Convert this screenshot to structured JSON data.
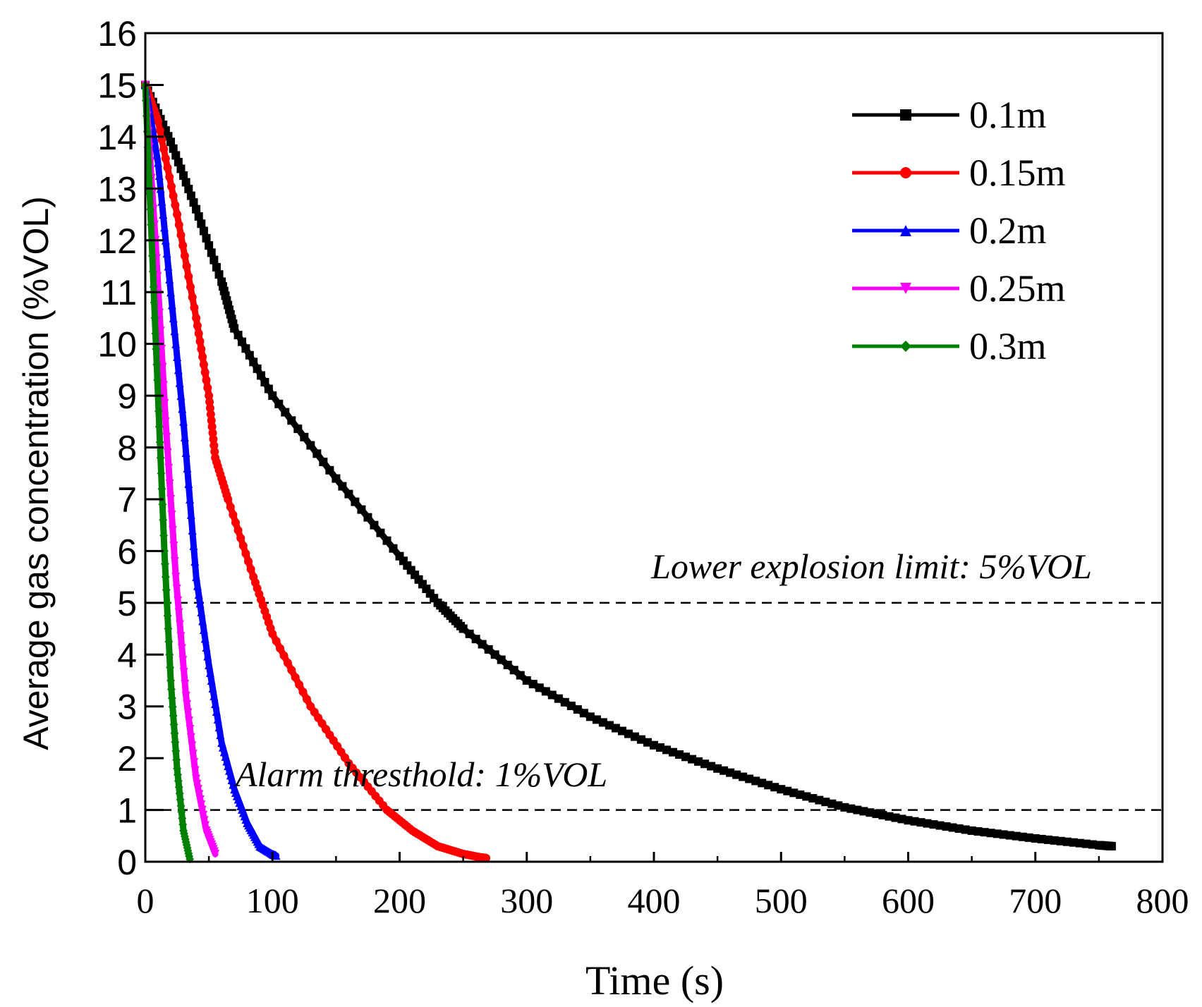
{
  "chart_data": {
    "type": "line",
    "title": "",
    "xlabel": "Time (s)",
    "ylabel": "Average gas concentration (%VOL)",
    "xlim": [
      0,
      800
    ],
    "ylim": [
      0,
      16
    ],
    "xticks": [
      0,
      100,
      200,
      300,
      400,
      500,
      600,
      700,
      800
    ],
    "yticks": [
      0,
      1,
      2,
      3,
      4,
      5,
      6,
      7,
      8,
      9,
      10,
      11,
      12,
      13,
      14,
      15,
      16
    ],
    "legend_position": "top-right",
    "series": [
      {
        "name": "0.1m",
        "color": "#000000",
        "marker": "square",
        "x": [
          0,
          20,
          40,
          60,
          70,
          100,
          150,
          200,
          230,
          250,
          300,
          350,
          400,
          450,
          500,
          550,
          600,
          650,
          700,
          750,
          760
        ],
        "y": [
          15.0,
          13.9,
          12.6,
          11.2,
          10.3,
          9.0,
          7.4,
          5.9,
          5.0,
          4.5,
          3.5,
          2.8,
          2.25,
          1.8,
          1.4,
          1.05,
          0.8,
          0.6,
          0.45,
          0.32,
          0.3
        ]
      },
      {
        "name": "0.15m",
        "color": "#ff0000",
        "marker": "circle",
        "x": [
          0,
          10,
          25,
          40,
          50,
          55,
          65,
          85,
          100,
          130,
          160,
          190,
          210,
          230,
          250,
          265,
          268
        ],
        "y": [
          15.0,
          14.3,
          12.5,
          10.5,
          9.0,
          7.8,
          7.0,
          5.5,
          4.4,
          3.0,
          1.9,
          1.0,
          0.6,
          0.3,
          0.15,
          0.08,
          0.07
        ]
      },
      {
        "name": "0.2m",
        "color": "#0000ff",
        "marker": "triangle-up",
        "x": [
          0,
          10,
          20,
          30,
          40,
          50,
          60,
          70,
          80,
          90,
          100,
          103
        ],
        "y": [
          15.0,
          13.5,
          11.0,
          8.5,
          5.5,
          3.8,
          2.3,
          1.4,
          0.75,
          0.3,
          0.15,
          0.12
        ]
      },
      {
        "name": "0.25m",
        "color": "#ff00ff",
        "marker": "triangle-down",
        "x": [
          0,
          8,
          16,
          24,
          32,
          40,
          48,
          55
        ],
        "y": [
          15.0,
          12.0,
          8.5,
          5.5,
          3.2,
          1.6,
          0.6,
          0.15
        ]
      },
      {
        "name": "0.3m",
        "color": "#008000",
        "marker": "diamond",
        "x": [
          0,
          5,
          10,
          15,
          20,
          25,
          30,
          35
        ],
        "y": [
          15.0,
          12.0,
          9.0,
          6.0,
          3.5,
          1.8,
          0.6,
          0.05
        ]
      }
    ],
    "reference_lines": [
      {
        "y": 5,
        "style": "dashed",
        "label": "Lower explosion limit: 5%VOL"
      },
      {
        "y": 1,
        "style": "dashed",
        "label": "Alarm thresthold: 1%VOL"
      }
    ]
  }
}
